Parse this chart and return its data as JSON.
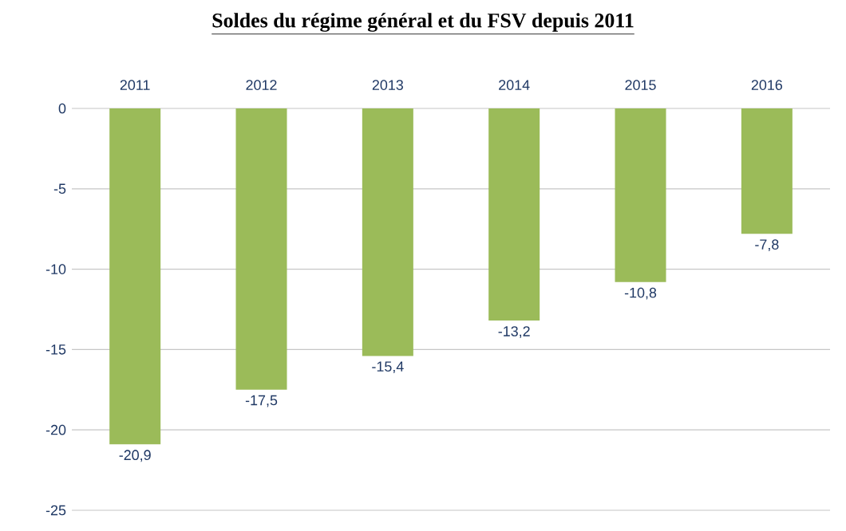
{
  "chart_data": {
    "type": "bar",
    "title": "Soldes du régime général et du FSV depuis 2011",
    "categories": [
      "2011",
      "2012",
      "2013",
      "2014",
      "2015",
      "2016"
    ],
    "values": [
      -20.9,
      -17.5,
      -15.4,
      -13.2,
      -10.8,
      -7.8
    ],
    "value_labels": [
      "-20,9",
      "-17,5",
      "-15,4",
      "-13,2",
      "-10,8",
      "-7,8"
    ],
    "color": "#9bbb59",
    "ylim": [
      -25,
      0
    ],
    "yticks": [
      -25,
      -20,
      -15,
      -10,
      -5,
      0
    ],
    "grid": "y"
  }
}
